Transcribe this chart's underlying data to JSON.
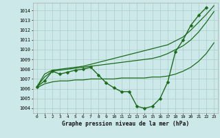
{
  "title": "Graphe pression niveau de la mer (hPa)",
  "background_color": "#cce8e8",
  "grid_color": "#aacccc",
  "line_color": "#1a6b1a",
  "xlim": [
    -0.5,
    23.5
  ],
  "ylim": [
    1003.5,
    1014.8
  ],
  "yticks": [
    1004,
    1005,
    1006,
    1007,
    1008,
    1009,
    1010,
    1011,
    1012,
    1013,
    1014
  ],
  "xticks": [
    0,
    1,
    2,
    3,
    4,
    5,
    6,
    7,
    8,
    9,
    10,
    11,
    12,
    13,
    14,
    15,
    16,
    17,
    18,
    19,
    20,
    21,
    22,
    23
  ],
  "series": [
    {
      "x": [
        0,
        1,
        2,
        3,
        4,
        5,
        6,
        7,
        8,
        9,
        10,
        11,
        12,
        13,
        14,
        15,
        16,
        17,
        18,
        19,
        20,
        21,
        22
      ],
      "y": [
        1006.2,
        1006.8,
        1007.8,
        1007.5,
        1007.7,
        1007.9,
        1008.0,
        1008.2,
        1007.4,
        1006.6,
        1006.1,
        1005.7,
        1005.7,
        1004.2,
        1004.0,
        1004.2,
        1005.0,
        1006.7,
        1009.8,
        1011.0,
        1012.5,
        1013.5,
        1014.3
      ],
      "marker": "D",
      "markersize": 2.5,
      "linewidth": 1.0
    },
    {
      "x": [
        0,
        1,
        2,
        3,
        4,
        5,
        6,
        7,
        8,
        9,
        10,
        11,
        12,
        13,
        14,
        15,
        16,
        17,
        18,
        19,
        20,
        21,
        22,
        23
      ],
      "y": [
        1006.2,
        1007.5,
        1007.9,
        1008.0,
        1008.1,
        1008.2,
        1008.3,
        1008.5,
        1008.7,
        1008.9,
        1009.1,
        1009.3,
        1009.5,
        1009.7,
        1009.9,
        1010.1,
        1010.3,
        1010.5,
        1010.9,
        1011.3,
        1012.0,
        1012.8,
        1013.6,
        1014.5
      ],
      "marker": null,
      "markersize": 0,
      "linewidth": 0.9
    },
    {
      "x": [
        0,
        1,
        2,
        3,
        4,
        5,
        6,
        7,
        8,
        9,
        10,
        11,
        12,
        13,
        14,
        15,
        16,
        17,
        18,
        19,
        20,
        21,
        22,
        23
      ],
      "y": [
        1006.2,
        1007.2,
        1007.8,
        1007.9,
        1008.0,
        1008.1,
        1008.2,
        1008.3,
        1008.4,
        1008.5,
        1008.6,
        1008.7,
        1008.8,
        1008.9,
        1009.0,
        1009.1,
        1009.3,
        1009.6,
        1010.0,
        1010.4,
        1011.0,
        1011.8,
        1012.8,
        1013.9
      ],
      "marker": null,
      "markersize": 0,
      "linewidth": 0.9
    },
    {
      "x": [
        0,
        1,
        2,
        3,
        4,
        5,
        6,
        7,
        8,
        9,
        10,
        11,
        12,
        13,
        14,
        15,
        16,
        17,
        18,
        19,
        20,
        21,
        22,
        23
      ],
      "y": [
        1006.1,
        1006.5,
        1006.7,
        1006.8,
        1006.8,
        1006.9,
        1006.9,
        1007.0,
        1007.0,
        1007.0,
        1007.0,
        1007.1,
        1007.1,
        1007.1,
        1007.1,
        1007.2,
        1007.2,
        1007.3,
        1007.5,
        1007.8,
        1008.2,
        1008.8,
        1009.6,
        1010.7
      ],
      "marker": null,
      "markersize": 0,
      "linewidth": 0.9
    }
  ]
}
